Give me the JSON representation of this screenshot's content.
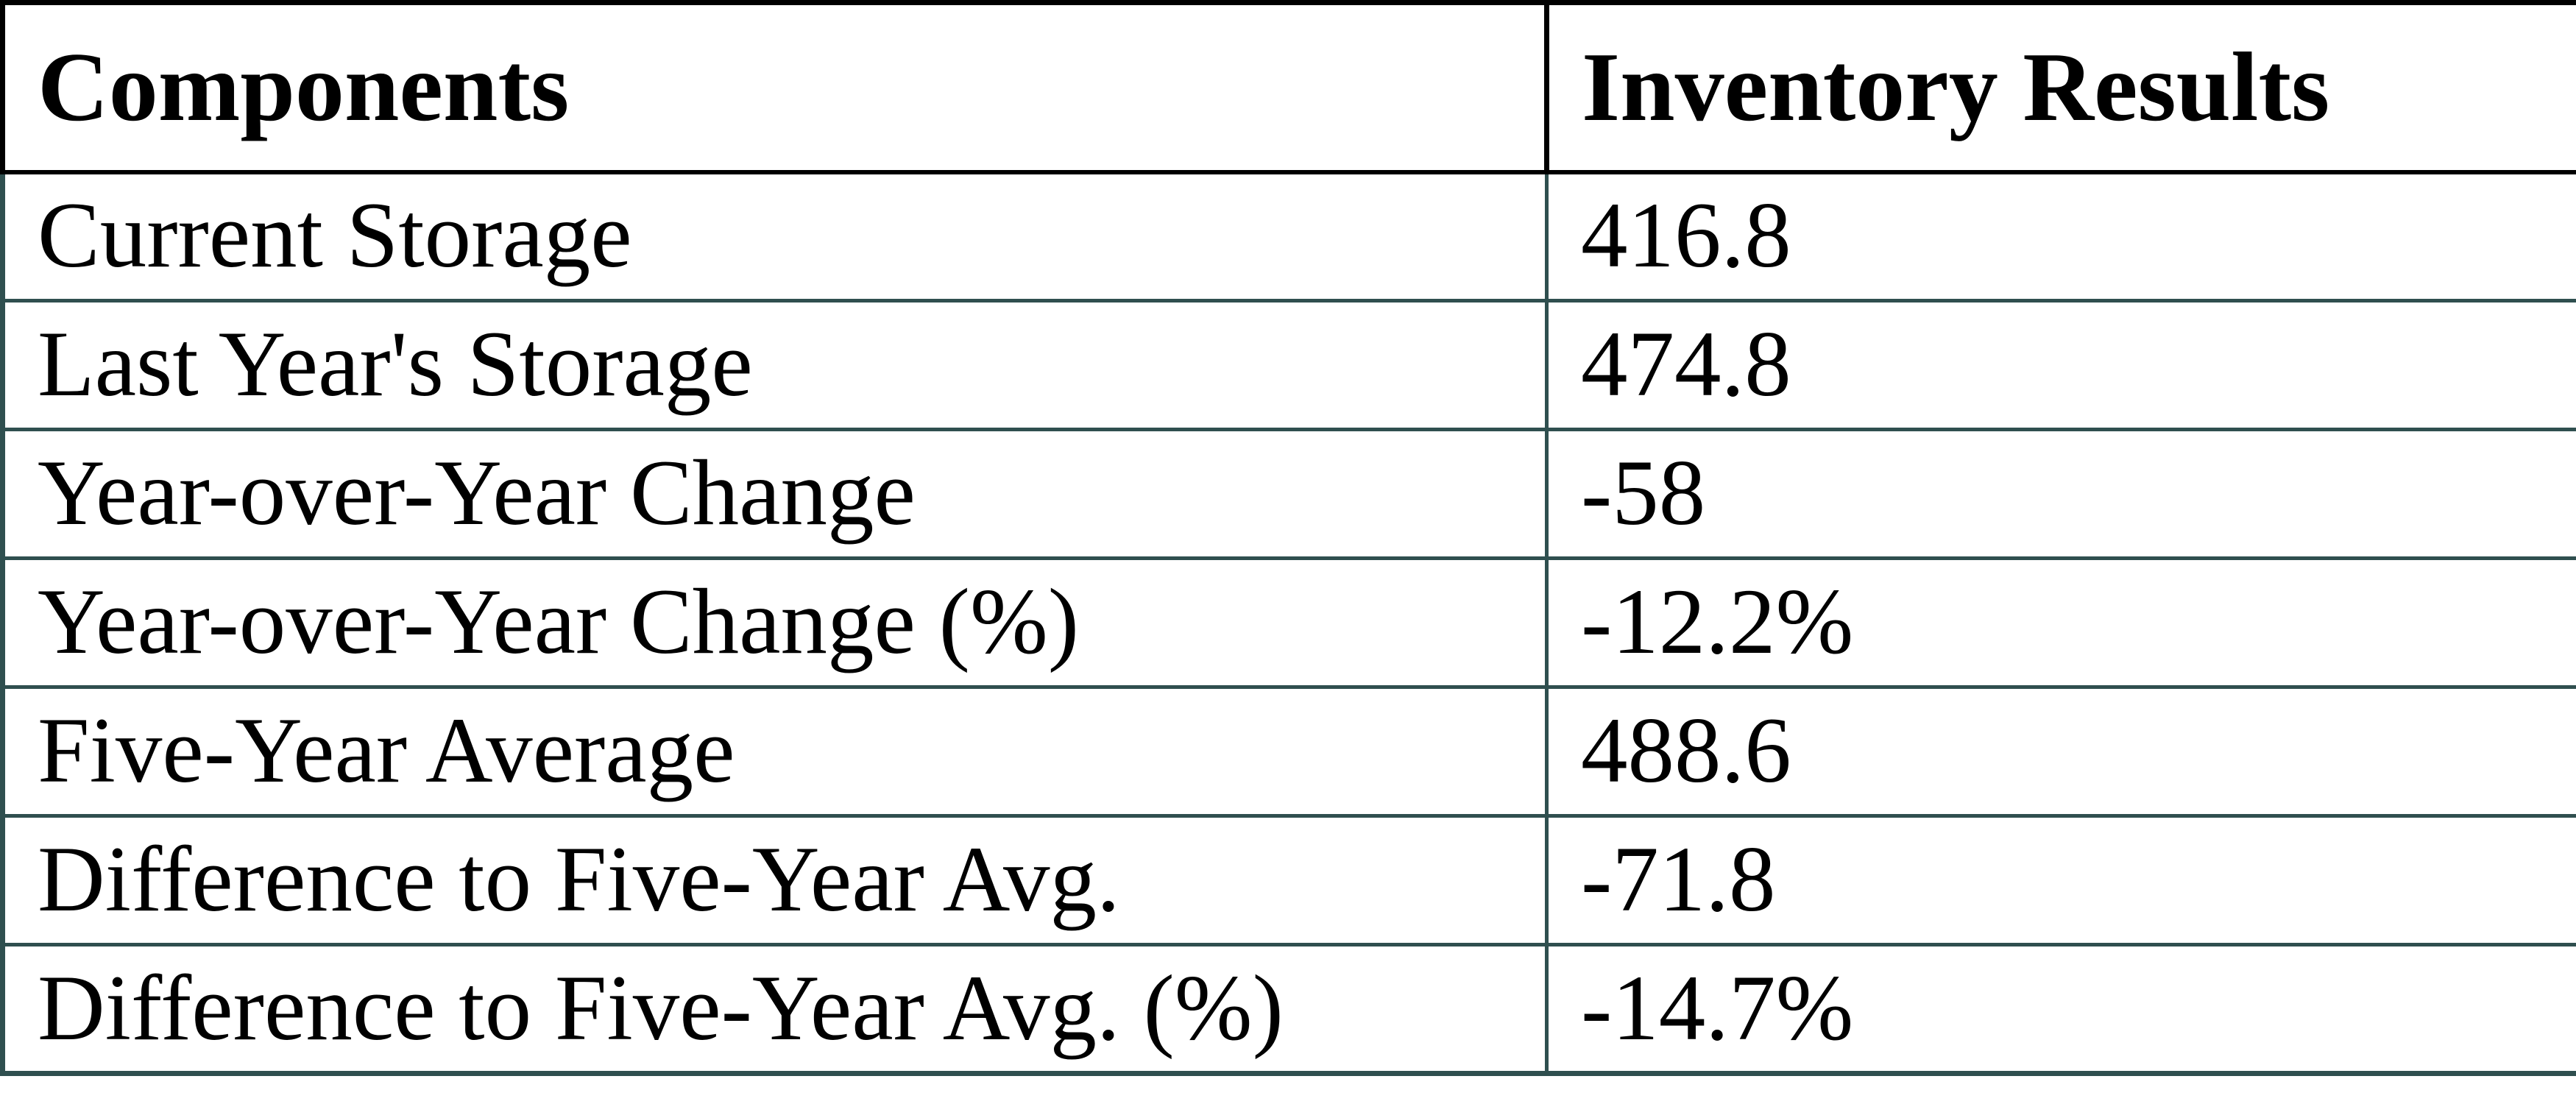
{
  "page": {
    "background": "#ffffff"
  },
  "table": {
    "columns": [
      "Components",
      "Inventory Results"
    ],
    "rows": [
      {
        "label": "Current Storage",
        "value": "416.8"
      },
      {
        "label": "Last Year's Storage",
        "value": "474.8"
      },
      {
        "label": "Year-over-Year Change",
        "value": "-58"
      },
      {
        "label": "Year-over-Year Change (%)",
        "value": "-12.2%"
      },
      {
        "label": "Five-Year Average",
        "value": "488.6"
      },
      {
        "label": "Difference to Five-Year Avg.",
        "value": "-71.8"
      },
      {
        "label": "Difference to Five-Year Avg. (%)",
        "value": "-14.7%"
      }
    ],
    "colors": {
      "header_border": "#000000",
      "grid_border": "#2f4f4f",
      "text": "#000000",
      "background": "#ffffff"
    }
  },
  "chart_data": {
    "type": "table",
    "title": "",
    "columns": [
      "Components",
      "Inventory Results"
    ],
    "rows": [
      [
        "Current Storage",
        416.8
      ],
      [
        "Last Year's Storage",
        474.8
      ],
      [
        "Year-over-Year Change",
        -58
      ],
      [
        "Year-over-Year Change (%)",
        "-12.2%"
      ],
      [
        "Five-Year Average",
        488.6
      ],
      [
        "Difference to Five-Year Avg.",
        -71.8
      ],
      [
        "Difference to Five-Year Avg. (%)",
        "-14.7%"
      ]
    ]
  }
}
